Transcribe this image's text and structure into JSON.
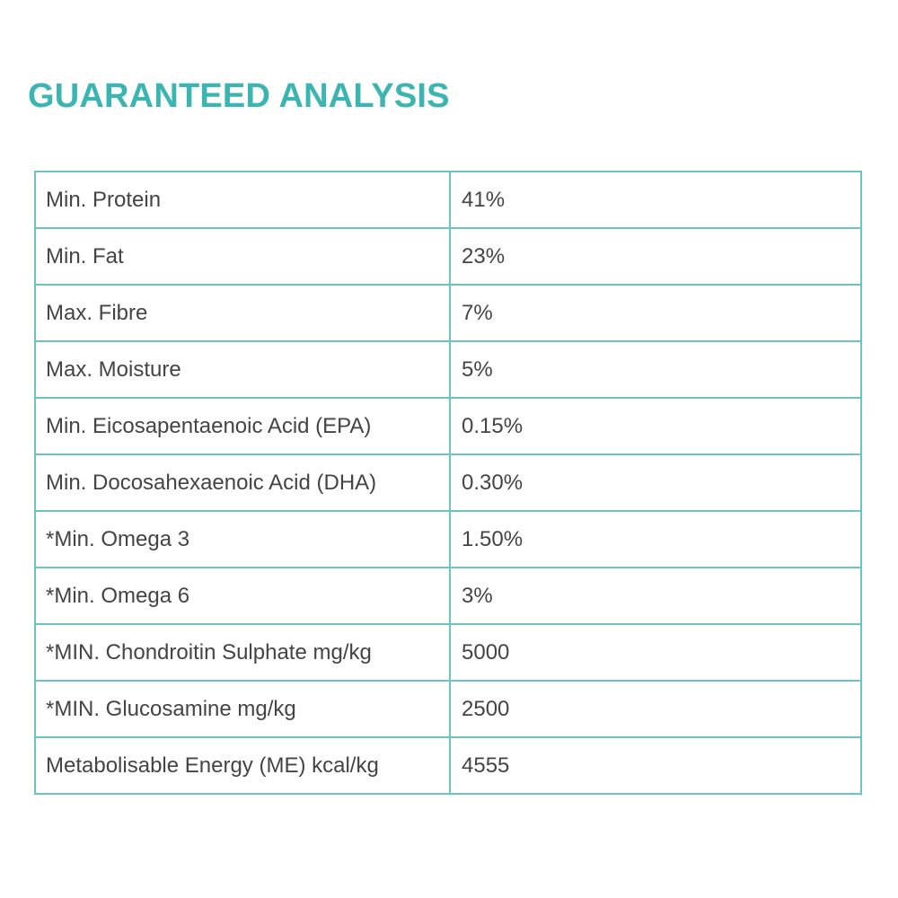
{
  "title": "GUARANTEED ANALYSIS",
  "colors": {
    "accent": "#3bb5b2",
    "border": "#6cc4c1",
    "text": "#444444"
  },
  "rows": [
    {
      "name": "Min. Protein",
      "value": "41%"
    },
    {
      "name": "Min. Fat",
      "value": "23%"
    },
    {
      "name": "Max. Fibre",
      "value": "7%"
    },
    {
      "name": "Max. Moisture",
      "value": "5%"
    },
    {
      "name": "Min. Eicosapentaenoic Acid (EPA)",
      "value": "0.15%"
    },
    {
      "name": "Min. Docosahexaenoic Acid (DHA)",
      "value": "0.30%"
    },
    {
      "name": "*Min. Omega 3",
      "value": "1.50%"
    },
    {
      "name": "*Min. Omega 6",
      "value": "3%"
    },
    {
      "name": "*MIN. Chondroitin Sulphate mg/kg",
      "value": "5000"
    },
    {
      "name": "*MIN. Glucosamine mg/kg",
      "value": "2500"
    },
    {
      "name": "Metabolisable Energy (ME) kcal/kg",
      "value": "4555"
    }
  ]
}
